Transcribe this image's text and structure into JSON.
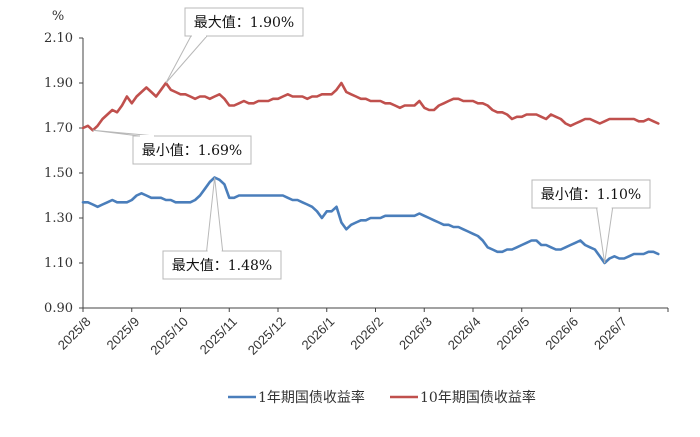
{
  "chart_data": {
    "type": "line",
    "unit_label": "%",
    "y_ticks": [
      "2.10",
      "1.90",
      "1.70",
      "1.50",
      "1.30",
      "1.10",
      "0.90"
    ],
    "ylim": [
      0.9,
      2.1
    ],
    "x_ticks": [
      "2025/8",
      "2025/9",
      "2025/10",
      "2025/11",
      "2025/12",
      "2026/1",
      "2026/2",
      "2026/3",
      "2026/4",
      "2026/5",
      "2026/6",
      "2026/7"
    ],
    "series": [
      {
        "name": "1年期国债收益率",
        "color": "#4a7ebb",
        "points": [
          [
            0,
            1.37
          ],
          [
            0.1,
            1.37
          ],
          [
            0.2,
            1.36
          ],
          [
            0.3,
            1.35
          ],
          [
            0.4,
            1.36
          ],
          [
            0.5,
            1.37
          ],
          [
            0.6,
            1.38
          ],
          [
            0.7,
            1.37
          ],
          [
            0.8,
            1.37
          ],
          [
            0.9,
            1.37
          ],
          [
            1.0,
            1.38
          ],
          [
            1.1,
            1.4
          ],
          [
            1.2,
            1.41
          ],
          [
            1.3,
            1.4
          ],
          [
            1.4,
            1.39
          ],
          [
            1.5,
            1.39
          ],
          [
            1.6,
            1.39
          ],
          [
            1.7,
            1.38
          ],
          [
            1.8,
            1.38
          ],
          [
            1.9,
            1.37
          ],
          [
            2.0,
            1.37
          ],
          [
            2.1,
            1.37
          ],
          [
            2.2,
            1.37
          ],
          [
            2.3,
            1.38
          ],
          [
            2.4,
            1.4
          ],
          [
            2.5,
            1.43
          ],
          [
            2.6,
            1.46
          ],
          [
            2.7,
            1.48
          ],
          [
            2.8,
            1.47
          ],
          [
            2.9,
            1.45
          ],
          [
            3.0,
            1.39
          ],
          [
            3.1,
            1.39
          ],
          [
            3.2,
            1.4
          ],
          [
            3.3,
            1.4
          ],
          [
            3.4,
            1.4
          ],
          [
            3.5,
            1.4
          ],
          [
            3.6,
            1.4
          ],
          [
            3.7,
            1.4
          ],
          [
            3.8,
            1.4
          ],
          [
            3.9,
            1.4
          ],
          [
            4.0,
            1.4
          ],
          [
            4.1,
            1.4
          ],
          [
            4.2,
            1.39
          ],
          [
            4.3,
            1.38
          ],
          [
            4.4,
            1.38
          ],
          [
            4.5,
            1.37
          ],
          [
            4.6,
            1.36
          ],
          [
            4.7,
            1.35
          ],
          [
            4.8,
            1.33
          ],
          [
            4.9,
            1.3
          ],
          [
            5.0,
            1.33
          ],
          [
            5.1,
            1.33
          ],
          [
            5.2,
            1.35
          ],
          [
            5.3,
            1.28
          ],
          [
            5.4,
            1.25
          ],
          [
            5.5,
            1.27
          ],
          [
            5.6,
            1.28
          ],
          [
            5.7,
            1.29
          ],
          [
            5.8,
            1.29
          ],
          [
            5.9,
            1.3
          ],
          [
            6.0,
            1.3
          ],
          [
            6.1,
            1.3
          ],
          [
            6.2,
            1.31
          ],
          [
            6.3,
            1.31
          ],
          [
            6.4,
            1.31
          ],
          [
            6.5,
            1.31
          ],
          [
            6.6,
            1.31
          ],
          [
            6.7,
            1.31
          ],
          [
            6.8,
            1.31
          ],
          [
            6.9,
            1.32
          ],
          [
            7.0,
            1.31
          ],
          [
            7.1,
            1.3
          ],
          [
            7.2,
            1.29
          ],
          [
            7.3,
            1.28
          ],
          [
            7.4,
            1.27
          ],
          [
            7.5,
            1.27
          ],
          [
            7.6,
            1.26
          ],
          [
            7.7,
            1.26
          ],
          [
            7.8,
            1.25
          ],
          [
            7.9,
            1.24
          ],
          [
            8.0,
            1.23
          ],
          [
            8.1,
            1.22
          ],
          [
            8.2,
            1.2
          ],
          [
            8.3,
            1.17
          ],
          [
            8.4,
            1.16
          ],
          [
            8.5,
            1.15
          ],
          [
            8.6,
            1.15
          ],
          [
            8.7,
            1.16
          ],
          [
            8.8,
            1.16
          ],
          [
            8.9,
            1.17
          ],
          [
            9.0,
            1.18
          ],
          [
            9.1,
            1.19
          ],
          [
            9.2,
            1.2
          ],
          [
            9.3,
            1.2
          ],
          [
            9.4,
            1.18
          ],
          [
            9.5,
            1.18
          ],
          [
            9.6,
            1.17
          ],
          [
            9.7,
            1.16
          ],
          [
            9.8,
            1.16
          ],
          [
            9.9,
            1.17
          ],
          [
            10.0,
            1.18
          ],
          [
            10.1,
            1.19
          ],
          [
            10.2,
            1.2
          ],
          [
            10.3,
            1.18
          ],
          [
            10.4,
            1.17
          ],
          [
            10.5,
            1.16
          ],
          [
            10.6,
            1.13
          ],
          [
            10.7,
            1.1
          ],
          [
            10.8,
            1.12
          ],
          [
            10.9,
            1.13
          ],
          [
            11.0,
            1.12
          ],
          [
            11.1,
            1.12
          ],
          [
            11.2,
            1.13
          ],
          [
            11.3,
            1.14
          ],
          [
            11.4,
            1.14
          ],
          [
            11.5,
            1.14
          ],
          [
            11.6,
            1.15
          ],
          [
            11.7,
            1.15
          ],
          [
            11.8,
            1.14
          ]
        ]
      },
      {
        "name": "10年期国债收益率",
        "color": "#c0504d",
        "points": [
          [
            0,
            1.7
          ],
          [
            0.1,
            1.71
          ],
          [
            0.2,
            1.69
          ],
          [
            0.3,
            1.71
          ],
          [
            0.4,
            1.74
          ],
          [
            0.5,
            1.76
          ],
          [
            0.6,
            1.78
          ],
          [
            0.7,
            1.77
          ],
          [
            0.8,
            1.8
          ],
          [
            0.9,
            1.84
          ],
          [
            1.0,
            1.81
          ],
          [
            1.1,
            1.84
          ],
          [
            1.2,
            1.86
          ],
          [
            1.3,
            1.88
          ],
          [
            1.4,
            1.86
          ],
          [
            1.5,
            1.84
          ],
          [
            1.6,
            1.87
          ],
          [
            1.7,
            1.9
          ],
          [
            1.8,
            1.87
          ],
          [
            1.9,
            1.86
          ],
          [
            2.0,
            1.85
          ],
          [
            2.1,
            1.85
          ],
          [
            2.2,
            1.84
          ],
          [
            2.3,
            1.83
          ],
          [
            2.4,
            1.84
          ],
          [
            2.5,
            1.84
          ],
          [
            2.6,
            1.83
          ],
          [
            2.7,
            1.84
          ],
          [
            2.8,
            1.85
          ],
          [
            2.9,
            1.83
          ],
          [
            3.0,
            1.8
          ],
          [
            3.1,
            1.8
          ],
          [
            3.2,
            1.81
          ],
          [
            3.3,
            1.82
          ],
          [
            3.4,
            1.81
          ],
          [
            3.5,
            1.81
          ],
          [
            3.6,
            1.82
          ],
          [
            3.7,
            1.82
          ],
          [
            3.8,
            1.82
          ],
          [
            3.9,
            1.83
          ],
          [
            4.0,
            1.83
          ],
          [
            4.1,
            1.84
          ],
          [
            4.2,
            1.85
          ],
          [
            4.3,
            1.84
          ],
          [
            4.4,
            1.84
          ],
          [
            4.5,
            1.84
          ],
          [
            4.6,
            1.83
          ],
          [
            4.7,
            1.84
          ],
          [
            4.8,
            1.84
          ],
          [
            4.9,
            1.85
          ],
          [
            5.0,
            1.85
          ],
          [
            5.1,
            1.85
          ],
          [
            5.2,
            1.87
          ],
          [
            5.3,
            1.9
          ],
          [
            5.4,
            1.86
          ],
          [
            5.5,
            1.85
          ],
          [
            5.6,
            1.84
          ],
          [
            5.7,
            1.83
          ],
          [
            5.8,
            1.83
          ],
          [
            5.9,
            1.82
          ],
          [
            6.0,
            1.82
          ],
          [
            6.1,
            1.82
          ],
          [
            6.2,
            1.81
          ],
          [
            6.3,
            1.81
          ],
          [
            6.4,
            1.8
          ],
          [
            6.5,
            1.79
          ],
          [
            6.6,
            1.8
          ],
          [
            6.7,
            1.8
          ],
          [
            6.8,
            1.8
          ],
          [
            6.9,
            1.82
          ],
          [
            7.0,
            1.79
          ],
          [
            7.1,
            1.78
          ],
          [
            7.2,
            1.78
          ],
          [
            7.3,
            1.8
          ],
          [
            7.4,
            1.81
          ],
          [
            7.5,
            1.82
          ],
          [
            7.6,
            1.83
          ],
          [
            7.7,
            1.83
          ],
          [
            7.8,
            1.82
          ],
          [
            7.9,
            1.82
          ],
          [
            8.0,
            1.82
          ],
          [
            8.1,
            1.81
          ],
          [
            8.2,
            1.81
          ],
          [
            8.3,
            1.8
          ],
          [
            8.4,
            1.78
          ],
          [
            8.5,
            1.77
          ],
          [
            8.6,
            1.77
          ],
          [
            8.7,
            1.76
          ],
          [
            8.8,
            1.74
          ],
          [
            8.9,
            1.75
          ],
          [
            9.0,
            1.75
          ],
          [
            9.1,
            1.76
          ],
          [
            9.2,
            1.76
          ],
          [
            9.3,
            1.76
          ],
          [
            9.4,
            1.75
          ],
          [
            9.5,
            1.74
          ],
          [
            9.6,
            1.76
          ],
          [
            9.7,
            1.75
          ],
          [
            9.8,
            1.74
          ],
          [
            9.9,
            1.72
          ],
          [
            10.0,
            1.71
          ],
          [
            10.1,
            1.72
          ],
          [
            10.2,
            1.73
          ],
          [
            10.3,
            1.74
          ],
          [
            10.4,
            1.74
          ],
          [
            10.5,
            1.73
          ],
          [
            10.6,
            1.72
          ],
          [
            10.7,
            1.73
          ],
          [
            10.8,
            1.74
          ],
          [
            10.9,
            1.74
          ],
          [
            11.0,
            1.74
          ],
          [
            11.1,
            1.74
          ],
          [
            11.2,
            1.74
          ],
          [
            11.3,
            1.74
          ],
          [
            11.4,
            1.73
          ],
          [
            11.5,
            1.73
          ],
          [
            11.6,
            1.74
          ],
          [
            11.7,
            1.73
          ],
          [
            11.8,
            1.72
          ]
        ]
      }
    ],
    "annotations": [
      {
        "text": "最大值：1.90%",
        "series": 1,
        "point": [
          1.7,
          1.9
        ],
        "side": "above"
      },
      {
        "text": "最小值：1.69%",
        "series": 1,
        "point": [
          0.2,
          1.69
        ],
        "side": "below"
      },
      {
        "text": "最大值：1.48%",
        "series": 0,
        "point": [
          2.7,
          1.48
        ],
        "side": "below"
      },
      {
        "text": "最小值：1.10%",
        "series": 0,
        "point": [
          10.7,
          1.1
        ],
        "side": "above"
      }
    ],
    "legend_position": "bottom"
  }
}
